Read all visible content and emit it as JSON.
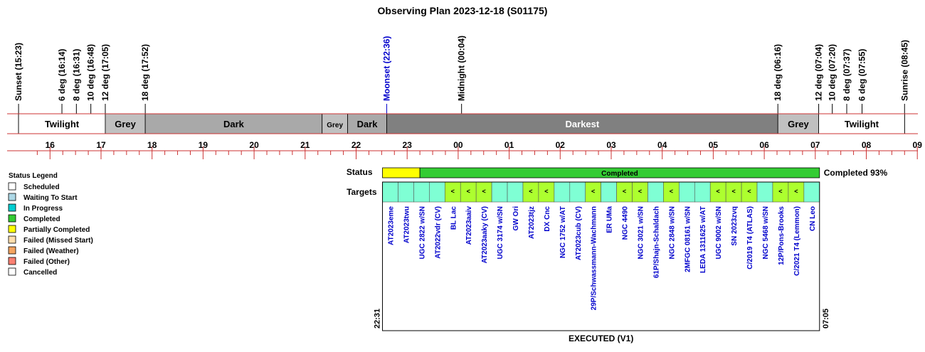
{
  "title": "Observing Plan 2023-12-18 (S01175)",
  "chart_data": {
    "type": "timeline",
    "time_axis": {
      "start": "15:20",
      "end": "09:00",
      "hour_labels": [
        "16",
        "17",
        "18",
        "19",
        "20",
        "21",
        "22",
        "23",
        "00",
        "01",
        "02",
        "03",
        "04",
        "05",
        "06",
        "07",
        "08",
        "09"
      ]
    },
    "events": [
      {
        "label": "Sunset (15:23)",
        "time": "15:23",
        "color": "#000000"
      },
      {
        "label": "6 deg (16:14)",
        "time": "16:14",
        "color": "#000000"
      },
      {
        "label": "8 deg (16:31)",
        "time": "16:31",
        "color": "#000000"
      },
      {
        "label": "10 deg (16:48)",
        "time": "16:48",
        "color": "#000000"
      },
      {
        "label": "12 deg (17:05)",
        "time": "17:05",
        "color": "#000000"
      },
      {
        "label": "18 deg (17:52)",
        "time": "17:52",
        "color": "#000000"
      },
      {
        "label": "Moonset (22:36)",
        "time": "22:36",
        "color": "#0000cc"
      },
      {
        "label": "Midnight (00:04)",
        "time": "00:04",
        "color": "#000000"
      },
      {
        "label": "18 deg (06:16)",
        "time": "06:16",
        "color": "#000000"
      },
      {
        "label": "12 deg (07:04)",
        "time": "07:04",
        "color": "#000000"
      },
      {
        "label": "10 deg (07:20)",
        "time": "07:20",
        "color": "#000000"
      },
      {
        "label": "8 deg (07:37)",
        "time": "07:37",
        "color": "#000000"
      },
      {
        "label": "6 deg (07:55)",
        "time": "07:55",
        "color": "#000000"
      },
      {
        "label": "Sunrise (08:45)",
        "time": "08:45",
        "color": "#000000"
      }
    ],
    "periods": [
      {
        "label": "Twilight",
        "start": "15:23",
        "end": "17:05",
        "color": "#ffffff",
        "text_color": "#000000"
      },
      {
        "label": "Grey",
        "start": "17:05",
        "end": "17:52",
        "color": "#c0c0c0",
        "text_color": "#000000"
      },
      {
        "label": "Dark",
        "start": "17:52",
        "end": "21:20",
        "color": "#a9a9a9",
        "text_color": "#000000"
      },
      {
        "label": "Grey",
        "start": "21:20",
        "end": "21:50",
        "color": "#c0c0c0",
        "text_color": "#000000"
      },
      {
        "label": "Dark",
        "start": "21:50",
        "end": "22:36",
        "color": "#a9a9a9",
        "text_color": "#000000"
      },
      {
        "label": "Darkest",
        "start": "22:36",
        "end": "06:16",
        "color": "#808080",
        "text_color": "#ffffff"
      },
      {
        "label": "Grey",
        "start": "06:16",
        "end": "07:04",
        "color": "#c0c0c0",
        "text_color": "#000000"
      },
      {
        "label": "Twilight",
        "start": "07:04",
        "end": "08:45",
        "color": "#ffffff",
        "text_color": "#000000"
      }
    ],
    "status_bar": {
      "label": "Status",
      "segments": [
        {
          "start": "22:31",
          "end": "23:15",
          "color": "#ffff00",
          "text": ""
        },
        {
          "start": "23:15",
          "end": "07:05",
          "color": "#33cc33",
          "text": "Completed"
        }
      ],
      "summary": "Completed 93%"
    },
    "targets_label": "Targets",
    "targets": [
      {
        "name": "AT2023eme",
        "color": "#7fffd4",
        "mark": ""
      },
      {
        "name": "AT2023twu",
        "color": "#7fffd4",
        "mark": ""
      },
      {
        "name": "UGC 2822 w/SN",
        "color": "#7fffd4",
        "mark": ""
      },
      {
        "name": "AT2022vdr (CV)",
        "color": "#7fffd4",
        "mark": ""
      },
      {
        "name": "BL Lac",
        "color": "#adff2f",
        "mark": "<"
      },
      {
        "name": "AT2023aaiv",
        "color": "#adff2f",
        "mark": "<"
      },
      {
        "name": "AT2023aaky (CV)",
        "color": "#adff2f",
        "mark": "<"
      },
      {
        "name": "UGC 3174 w/SN",
        "color": "#7fffd4",
        "mark": ""
      },
      {
        "name": "GW Ori",
        "color": "#7fffd4",
        "mark": ""
      },
      {
        "name": "AT2023tjz",
        "color": "#adff2f",
        "mark": "<"
      },
      {
        "name": "DX Cnc",
        "color": "#adff2f",
        "mark": "<"
      },
      {
        "name": "NGC 1752 w/AT",
        "color": "#7fffd4",
        "mark": ""
      },
      {
        "name": "AT2023cub (CV)",
        "color": "#7fffd4",
        "mark": ""
      },
      {
        "name": "29P/Schwassmann-Wachmann",
        "color": "#adff2f",
        "mark": "<"
      },
      {
        "name": "ER UMa",
        "color": "#7fffd4",
        "mark": ""
      },
      {
        "name": "NGC 4490",
        "color": "#adff2f",
        "mark": "<"
      },
      {
        "name": "NGC 3021 w/SN",
        "color": "#adff2f",
        "mark": "<"
      },
      {
        "name": "61P/Shajn-Schaldach",
        "color": "#7fffd4",
        "mark": ""
      },
      {
        "name": "NGC 2848 w/SN",
        "color": "#adff2f",
        "mark": "<"
      },
      {
        "name": "2MFGC 08161 w/SN",
        "color": "#7fffd4",
        "mark": ""
      },
      {
        "name": "LEDA 1311625 w/AT",
        "color": "#7fffd4",
        "mark": ""
      },
      {
        "name": "UGC 9002 w/SN",
        "color": "#adff2f",
        "mark": "<"
      },
      {
        "name": "SN 2023zvq",
        "color": "#adff2f",
        "mark": "<"
      },
      {
        "name": "C/2019 T4 (ATLAS)",
        "color": "#adff2f",
        "mark": "<"
      },
      {
        "name": "NGC 5468 w/SN",
        "color": "#7fffd4",
        "mark": ""
      },
      {
        "name": "12P/Pons-Brooks",
        "color": "#adff2f",
        "mark": "<"
      },
      {
        "name": "C/2021 T4 (Lemmon)",
        "color": "#adff2f",
        "mark": "<"
      },
      {
        "name": "CN Leo",
        "color": "#7fffd4",
        "mark": ""
      }
    ],
    "window_start": "22:31",
    "window_end": "07:05",
    "footer": "EXECUTED (V1)"
  },
  "legend": {
    "title": "Status Legend",
    "items": [
      {
        "label": "Scheduled",
        "color": "#ffffff"
      },
      {
        "label": "Waiting To Start",
        "color": "#add8e6"
      },
      {
        "label": "In Progress",
        "color": "#00ced1"
      },
      {
        "label": "Completed",
        "color": "#33cc33"
      },
      {
        "label": "Partially Completed",
        "color": "#ffff00"
      },
      {
        "label": "Failed (Missed Start)",
        "color": "#ffdead"
      },
      {
        "label": "Failed (Weather)",
        "color": "#f4a460"
      },
      {
        "label": "Failed (Other)",
        "color": "#fa8072"
      },
      {
        "label": "Cancelled",
        "color": "#ffffff"
      }
    ]
  }
}
